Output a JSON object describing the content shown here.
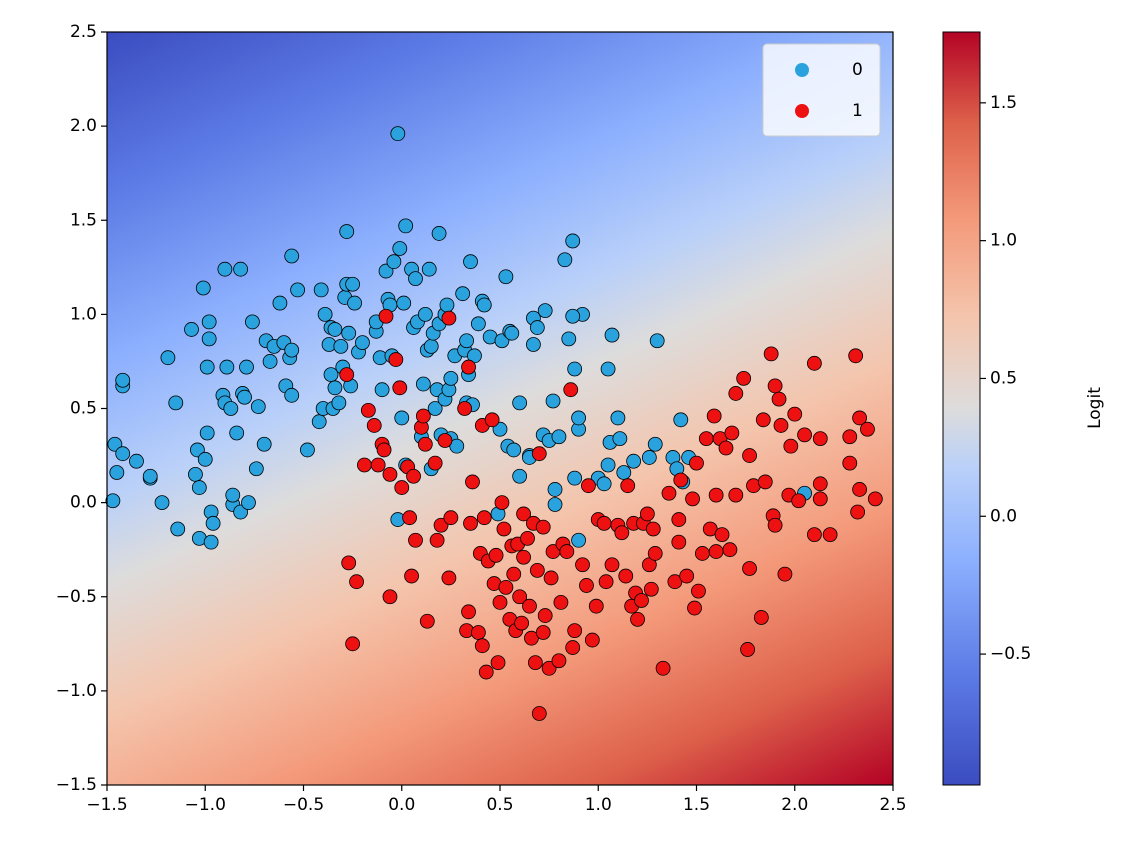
{
  "chart_data": {
    "type": "scatter",
    "xlim": [
      -1.5,
      2.5
    ],
    "ylim": [
      -1.5,
      2.5
    ],
    "xticks": [
      {
        "value": -1.5,
        "label": "−1.5"
      },
      {
        "value": -1.0,
        "label": "−1.0"
      },
      {
        "value": -0.5,
        "label": "−0.5"
      },
      {
        "value": 0,
        "label": "0.0"
      },
      0.5,
      {
        "value": 1,
        "label": "1.0"
      },
      1.5,
      {
        "value": 2,
        "label": "2.0"
      },
      2.5
    ],
    "yticks": [
      {
        "value": -1.5,
        "label": "−1.5"
      },
      {
        "value": -1.0,
        "label": "−1.0"
      },
      {
        "value": -0.5,
        "label": "−0.5"
      },
      {
        "value": 0,
        "label": "0.0"
      },
      0.5,
      {
        "value": 1,
        "label": "1.0"
      },
      1.5,
      {
        "value": 2,
        "label": "2.0"
      },
      2.5
    ],
    "legend": "upper right",
    "colorbar": {
      "label": "Logit",
      "lim": [
        -0.975,
        1.757
      ],
      "ticks": [
        {
          "value": -0.5,
          "label": "−0.5"
        },
        {
          "value": 0,
          "label": "0.0"
        },
        0.5,
        {
          "value": 1,
          "label": "1.0"
        },
        1.5
      ]
    },
    "series": [
      {
        "name": "0",
        "color": "#2aa2de",
        "x": [
          -1.47,
          -1.46,
          -1.45,
          -1.42,
          -1.42,
          -1.42,
          -1.35,
          -1.28,
          -1.28,
          -1.22,
          -1.19,
          -1.15,
          -1.14,
          -1.07,
          -1.05,
          -1.04,
          -1.03,
          -1.03,
          -1.01,
          -1.0,
          -0.99,
          -0.99,
          -0.98,
          -0.98,
          -0.97,
          -0.97,
          -0.96,
          -0.91,
          -0.9,
          -0.9,
          -0.89,
          -0.87,
          -0.86,
          -0.86,
          -0.84,
          -0.82,
          -0.82,
          -0.81,
          -0.8,
          -0.79,
          -0.78,
          -0.76,
          -0.74,
          -0.73,
          -0.7,
          -0.69,
          -0.67,
          -0.65,
          -0.62,
          -0.6,
          -0.59,
          -0.57,
          -0.56,
          -0.56,
          -0.56,
          -0.53,
          -0.48,
          -0.42,
          -0.41,
          -0.4,
          -0.39,
          -0.37,
          -0.36,
          -0.36,
          -0.35,
          -0.34,
          -0.34,
          -0.32,
          -0.31,
          -0.3,
          -0.29,
          -0.28,
          -0.28,
          -0.27,
          -0.26,
          -0.25,
          -0.24,
          -0.22,
          -0.2,
          -0.13,
          -0.13,
          -0.11,
          -0.1,
          -0.08,
          -0.07,
          -0.06,
          -0.05,
          -0.04,
          -0.02,
          -0.01,
          0.0,
          0.01,
          0.02,
          0.02,
          0.05,
          0.06,
          0.07,
          0.08,
          0.1,
          0.11,
          0.12,
          0.13,
          0.14,
          0.15,
          0.15,
          0.16,
          0.17,
          0.18,
          0.19,
          0.19,
          0.2,
          0.22,
          0.22,
          0.23,
          0.24,
          0.25,
          0.25,
          0.27,
          0.28,
          0.31,
          0.32,
          0.33,
          0.33,
          0.34,
          0.35,
          0.36,
          0.37,
          0.39,
          0.41,
          0.42,
          0.45,
          0.5,
          0.51,
          0.53,
          0.54,
          0.55,
          0.57,
          0.6,
          0.6,
          0.65,
          0.67,
          0.67,
          0.69,
          0.72,
          0.73,
          0.75,
          0.77,
          0.78,
          0.78,
          0.8,
          0.83,
          0.85,
          0.87,
          0.88,
          0.88,
          0.9,
          0.9,
          0.92,
          0.9,
          1.0,
          1.03,
          1.05,
          1.05,
          1.06,
          1.07,
          1.1,
          1.11,
          1.13,
          1.18,
          1.26,
          1.29,
          1.3,
          1.38,
          1.4,
          1.42,
          1.43,
          1.46,
          2.05,
          0.49,
          0.65,
          0.87,
          0.56,
          -0.02
        ],
        "values": [
          0.01,
          0.31,
          0.16,
          0.62,
          0.65,
          0.26,
          0.22,
          0.13,
          0.14,
          0.0,
          0.77,
          0.53,
          -0.14,
          0.92,
          0.15,
          0.28,
          0.08,
          -0.19,
          1.14,
          0.23,
          0.37,
          0.72,
          0.87,
          0.96,
          -0.21,
          -0.05,
          -0.11,
          0.57,
          1.24,
          0.53,
          0.72,
          0.5,
          -0.01,
          0.04,
          0.37,
          -0.05,
          1.24,
          0.58,
          0.56,
          0.72,
          0.0,
          0.96,
          0.18,
          0.51,
          0.31,
          0.86,
          0.75,
          0.83,
          1.06,
          0.85,
          0.62,
          0.77,
          1.31,
          0.81,
          0.57,
          1.13,
          0.28,
          0.43,
          1.13,
          0.5,
          1.0,
          0.84,
          0.93,
          0.68,
          0.5,
          0.61,
          0.92,
          0.53,
          0.83,
          0.72,
          1.09,
          1.16,
          1.44,
          0.9,
          0.62,
          1.16,
          1.06,
          0.8,
          0.85,
          0.91,
          0.96,
          0.77,
          0.6,
          1.23,
          1.08,
          1.05,
          0.78,
          1.28,
          1.96,
          1.35,
          0.45,
          1.06,
          1.47,
          0.2,
          1.24,
          0.93,
          1.19,
          0.96,
          0.35,
          0.63,
          1.0,
          0.81,
          1.24,
          0.83,
          0.18,
          0.9,
          0.5,
          0.6,
          0.95,
          1.43,
          0.36,
          1.0,
          0.55,
          1.05,
          0.6,
          0.66,
          0.34,
          0.78,
          0.3,
          1.11,
          0.81,
          0.53,
          0.86,
          0.68,
          1.28,
          0.52,
          0.78,
          0.95,
          1.07,
          1.05,
          0.88,
          0.39,
          0.86,
          1.2,
          0.3,
          0.91,
          0.28,
          0.53,
          0.14,
          0.25,
          0.84,
          0.98,
          0.93,
          0.36,
          1.02,
          0.33,
          0.54,
          0.07,
          -0.01,
          0.35,
          1.29,
          0.87,
          1.39,
          0.71,
          0.13,
          0.39,
          0.45,
          1.0,
          -0.2,
          0.13,
          0.1,
          0.71,
          0.2,
          0.32,
          0.89,
          0.45,
          0.34,
          0.16,
          0.22,
          0.24,
          0.31,
          0.86,
          0.24,
          0.18,
          0.44,
          0.11,
          0.24,
          0.05,
          -0.06,
          0.24,
          0.99,
          0.9,
          -0.09
        ]
      },
      {
        "name": "1",
        "color": "#ee1111",
        "x": [
          -0.28,
          -0.27,
          -0.25,
          -0.23,
          -0.19,
          -0.17,
          -0.14,
          -0.12,
          -0.1,
          -0.09,
          -0.08,
          -0.06,
          -0.06,
          -0.03,
          -0.01,
          0.0,
          0.03,
          0.04,
          0.05,
          0.06,
          0.07,
          0.1,
          0.11,
          0.12,
          0.13,
          0.17,
          0.18,
          0.2,
          0.22,
          0.24,
          0.24,
          0.25,
          0.32,
          0.33,
          0.34,
          0.34,
          0.35,
          0.36,
          0.39,
          0.4,
          0.41,
          0.41,
          0.42,
          0.43,
          0.44,
          0.46,
          0.47,
          0.48,
          0.49,
          0.5,
          0.51,
          0.52,
          0.53,
          0.55,
          0.56,
          0.57,
          0.58,
          0.59,
          0.6,
          0.61,
          0.62,
          0.62,
          0.64,
          0.65,
          0.66,
          0.67,
          0.68,
          0.69,
          0.7,
          0.7,
          0.72,
          0.72,
          0.73,
          0.75,
          0.76,
          0.77,
          0.8,
          0.81,
          0.82,
          0.84,
          0.86,
          0.87,
          0.88,
          0.92,
          0.94,
          0.95,
          0.97,
          0.99,
          1.0,
          1.03,
          1.04,
          1.07,
          1.1,
          1.12,
          1.14,
          1.15,
          1.17,
          1.18,
          1.19,
          1.2,
          1.22,
          1.23,
          1.25,
          1.26,
          1.27,
          1.28,
          1.29,
          1.33,
          1.36,
          1.39,
          1.41,
          1.41,
          1.42,
          1.45,
          1.48,
          1.49,
          1.5,
          1.51,
          1.53,
          1.55,
          1.57,
          1.59,
          1.6,
          1.6,
          1.62,
          1.63,
          1.65,
          1.67,
          1.68,
          1.7,
          1.7,
          1.74,
          1.76,
          1.77,
          1.77,
          1.79,
          1.83,
          1.84,
          1.88,
          1.89,
          1.9,
          1.9,
          1.92,
          1.93,
          1.95,
          1.97,
          1.98,
          2.0,
          2.02,
          2.05,
          2.1,
          2.1,
          2.13,
          2.13,
          2.13,
          2.18,
          2.28,
          2.28,
          2.31,
          2.32,
          2.33,
          2.33,
          2.37,
          2.41,
          1.85
        ],
        "values": [
          0.68,
          -0.32,
          -0.75,
          -0.42,
          0.2,
          0.49,
          0.41,
          0.2,
          0.31,
          0.28,
          0.99,
          0.15,
          -0.5,
          0.76,
          0.61,
          0.08,
          0.19,
          -0.08,
          -0.39,
          0.14,
          -0.2,
          0.4,
          0.46,
          0.31,
          -0.63,
          0.21,
          -0.2,
          -0.12,
          0.33,
          0.98,
          -0.4,
          -0.08,
          0.5,
          -0.68,
          0.72,
          -0.58,
          -0.11,
          0.11,
          -0.69,
          -0.27,
          -0.76,
          0.41,
          -0.08,
          -0.9,
          -0.31,
          0.44,
          -0.43,
          -0.28,
          -0.85,
          -0.53,
          0.0,
          -0.14,
          -0.45,
          -0.62,
          -0.23,
          -0.38,
          -0.68,
          -0.22,
          -0.5,
          -0.64,
          -0.29,
          -0.06,
          -0.19,
          -0.55,
          -0.72,
          -0.11,
          -0.85,
          -0.36,
          0.26,
          -1.12,
          -0.13,
          -0.69,
          -0.6,
          -0.88,
          -0.4,
          -0.26,
          -0.84,
          -0.53,
          -0.22,
          -0.26,
          0.6,
          -0.77,
          -0.68,
          -0.33,
          -0.44,
          0.09,
          -0.73,
          -0.55,
          -0.09,
          -0.11,
          -0.42,
          -0.33,
          -0.12,
          -0.16,
          -0.39,
          0.09,
          -0.55,
          -0.11,
          -0.48,
          -0.62,
          -0.52,
          -0.11,
          -0.06,
          -0.33,
          -0.46,
          -0.14,
          -0.27,
          -0.88,
          0.05,
          -0.42,
          -0.09,
          -0.21,
          0.12,
          -0.39,
          0.02,
          -0.56,
          0.21,
          -0.47,
          -0.27,
          0.34,
          -0.14,
          0.46,
          -0.26,
          0.04,
          0.34,
          -0.17,
          0.29,
          -0.25,
          0.37,
          0.04,
          0.58,
          0.66,
          -0.78,
          0.25,
          -0.35,
          0.09,
          -0.61,
          0.44,
          0.79,
          -0.07,
          0.62,
          -0.12,
          0.55,
          0.41,
          -0.38,
          0.04,
          0.3,
          0.47,
          0.01,
          0.36,
          0.74,
          -0.17,
          0.34,
          0.1,
          0.02,
          -0.17,
          0.21,
          0.35,
          0.78,
          -0.05,
          0.45,
          0.07,
          0.39,
          0.02,
          0.11
        ]
      }
    ]
  }
}
